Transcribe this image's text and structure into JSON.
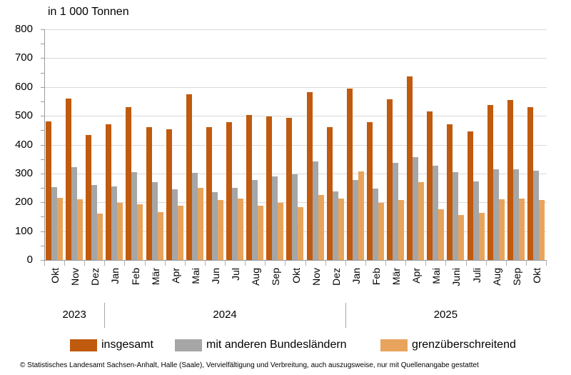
{
  "title": "in 1 000 Tonnen",
  "footer": "© Statistisches Landesamt Sachsen-Anhalt, Halle (Saale), Vervielfältigung und Verbreitung, auch auszugsweise, nur mit Quellenangabe gestattet",
  "colors": {
    "insgesamt": "#C05A0E",
    "bundeslaender": "#A6A6A6",
    "grenzueberschreitend": "#E8A45C",
    "gridline": "#D9D9D9",
    "axis": "#9B9B9B"
  },
  "chart_data": {
    "type": "bar",
    "title": "in 1 000 Tonnen",
    "ylabel": "in 1 000 Tonnen",
    "ylim": [
      0,
      800
    ],
    "ytick_step": 100,
    "yminor_step": 50,
    "grid": "horizontal",
    "legend_position": "bottom",
    "categories": [
      "Okt",
      "Nov",
      "Dez",
      "Jan",
      "Feb",
      "Mär",
      "Apr",
      "Mai",
      "Jun",
      "Jul",
      "Aug",
      "Sep",
      "Okt",
      "Nov",
      "Dez",
      "Jan",
      "Feb",
      "Mär",
      "Apr",
      "Mai",
      "Juni",
      "Juli",
      "Aug",
      "Sep",
      "Okt"
    ],
    "year_groups": [
      {
        "label": "2023",
        "span": 3
      },
      {
        "label": "2024",
        "span": 12
      },
      {
        "label": "2025",
        "span": 10
      }
    ],
    "series": [
      {
        "name": "insgesamt",
        "color": "#C05A0E",
        "values": [
          480,
          559,
          433,
          471,
          529,
          461,
          454,
          575,
          460,
          478,
          502,
          499,
          493,
          582,
          461,
          595,
          479,
          557,
          636,
          516,
          471,
          445,
          537,
          556,
          529
        ]
      },
      {
        "name": "mit anderen Bundesländern",
        "color": "#A6A6A6",
        "values": [
          252,
          322,
          259,
          254,
          305,
          271,
          246,
          302,
          236,
          249,
          278,
          290,
          296,
          343,
          239,
          277,
          247,
          336,
          356,
          328,
          305,
          272,
          314,
          314,
          310
        ]
      },
      {
        "name": "grenzüberschreitend",
        "color": "#E8A45C",
        "values": [
          215,
          210,
          161,
          197,
          194,
          167,
          189,
          251,
          209,
          214,
          189,
          197,
          183,
          226,
          214,
          308,
          198,
          207,
          270,
          175,
          157,
          164,
          211,
          212,
          207
        ]
      }
    ]
  }
}
